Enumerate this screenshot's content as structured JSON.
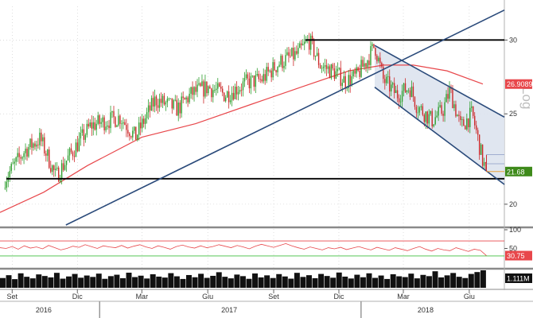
{
  "chart_data": [
    {
      "type": "candlestick",
      "panel": "price",
      "y_scale": "log",
      "y_axis_label": "Log",
      "yticks": [
        20,
        25,
        30
      ],
      "ylim": [
        19,
        32.6
      ],
      "x_period": [
        "2016-08-15",
        "2018-07-20"
      ],
      "last_price": 21.68,
      "last_price_label": "21.68",
      "moving_average_last": 26.9089,
      "moving_average_label": "26.9089",
      "colors": {
        "up": "#2e9e2e",
        "down": "#cc2a2a",
        "moving_average": "#e8474b",
        "trendline": "#2a4a7a",
        "channel_fill": "#dde3ee",
        "price_tag": "#3e8a1a",
        "ma_tag": "#e8474b"
      },
      "ohlc_samples": [
        {
          "date": "2016-08-22",
          "close": 21.3
        },
        {
          "date": "2016-09-20",
          "close": 22.9
        },
        {
          "date": "2016-10-10",
          "close": 23.5
        },
        {
          "date": "2016-11-01",
          "close": 21.4
        },
        {
          "date": "2016-11-21",
          "close": 22.6
        },
        {
          "date": "2016-12-20",
          "close": 24.3
        },
        {
          "date": "2017-01-30",
          "close": 24.8
        },
        {
          "date": "2017-02-20",
          "close": 23.6
        },
        {
          "date": "2017-03-20",
          "close": 25.9
        },
        {
          "date": "2017-04-20",
          "close": 25.3
        },
        {
          "date": "2017-05-10",
          "close": 26.3
        },
        {
          "date": "2017-06-01",
          "close": 26.7
        },
        {
          "date": "2017-06-26",
          "close": 26.2
        },
        {
          "date": "2017-07-25",
          "close": 27.0
        },
        {
          "date": "2017-08-15",
          "close": 27.2
        },
        {
          "date": "2017-09-10",
          "close": 28.4
        },
        {
          "date": "2017-10-05",
          "close": 29.0
        },
        {
          "date": "2017-10-20",
          "close": 30.0
        },
        {
          "date": "2017-11-05",
          "close": 28.2
        },
        {
          "date": "2017-11-25",
          "close": 27.7
        },
        {
          "date": "2017-12-10",
          "close": 27.1
        },
        {
          "date": "2017-12-25",
          "close": 27.4
        },
        {
          "date": "2018-01-10",
          "close": 28.6
        },
        {
          "date": "2018-01-20",
          "close": 29.6
        },
        {
          "date": "2018-02-01",
          "close": 27.2
        },
        {
          "date": "2018-02-20",
          "close": 26.2
        },
        {
          "date": "2018-03-10",
          "close": 26.7
        },
        {
          "date": "2018-03-20",
          "close": 25.5
        },
        {
          "date": "2018-04-10",
          "close": 24.6
        },
        {
          "date": "2018-04-25",
          "close": 25.2
        },
        {
          "date": "2018-05-05",
          "close": 26.5
        },
        {
          "date": "2018-05-20",
          "close": 24.2
        },
        {
          "date": "2018-06-05",
          "close": 25.0
        },
        {
          "date": "2018-06-20",
          "close": 22.2
        },
        {
          "date": "2018-06-25",
          "close": 21.68
        }
      ],
      "moving_average": [
        {
          "date": "2016-08-15",
          "value": 19.6
        },
        {
          "date": "2016-10-15",
          "value": 20.6
        },
        {
          "date": "2016-12-15",
          "value": 22.0
        },
        {
          "date": "2017-03-01",
          "value": 23.6
        },
        {
          "date": "2017-05-15",
          "value": 24.4
        },
        {
          "date": "2017-08-01",
          "value": 25.6
        },
        {
          "date": "2017-10-15",
          "value": 26.8
        },
        {
          "date": "2017-12-15",
          "value": 27.8
        },
        {
          "date": "2018-02-01",
          "value": 28.2
        },
        {
          "date": "2018-03-15",
          "value": 28.2
        },
        {
          "date": "2018-05-01",
          "value": 27.8
        },
        {
          "date": "2018-06-20",
          "value": 26.9089
        }
      ],
      "annotations": {
        "resistance_level": 30.0,
        "support_level": 21.3,
        "rising_trendline": [
          {
            "date": "2016-11-15",
            "value": 19.0
          },
          {
            "date": "2018-07-20",
            "value": 32.3
          }
        ],
        "falling_channel_upper": [
          {
            "date": "2018-01-20",
            "value": 29.6
          },
          {
            "date": "2018-07-20",
            "value": 24.8
          }
        ],
        "falling_channel_lower": [
          {
            "date": "2018-01-20",
            "value": 26.7
          },
          {
            "date": "2018-07-20",
            "value": 21.0
          }
        ]
      }
    },
    {
      "type": "line",
      "panel": "rsi",
      "yticks": [
        50,
        100
      ],
      "ylim": [
        0,
        100
      ],
      "upper_band": 70,
      "lower_band": 30,
      "last_value": 30.75,
      "last_value_label": "30.75",
      "series": [
        {
          "values": [
            52,
            50,
            55,
            48,
            57,
            51,
            54,
            49,
            58,
            52,
            46,
            50,
            56,
            53,
            60,
            55,
            50,
            57,
            54,
            52,
            58,
            51,
            56,
            60,
            54,
            50,
            57,
            53,
            48,
            55,
            59,
            54,
            51,
            57,
            52,
            55,
            60,
            56,
            52,
            58,
            54,
            49,
            56,
            61,
            57,
            53,
            58,
            63,
            57,
            52,
            48,
            54,
            50,
            46,
            52,
            49,
            53,
            47,
            51,
            55,
            50,
            46,
            53,
            49,
            45,
            52,
            48,
            44,
            50,
            55,
            48,
            43,
            50,
            46,
            44,
            52,
            47,
            42,
            48,
            45,
            30.75
          ]
        }
      ]
    },
    {
      "type": "bar",
      "panel": "volume",
      "last_value_label": "1.111M",
      "values": [
        0.62,
        0.8,
        0.55,
        0.92,
        0.7,
        0.6,
        0.85,
        0.75,
        0.66,
        0.95,
        0.58,
        0.72,
        0.88,
        0.64,
        0.78,
        0.69,
        0.9,
        0.57,
        0.74,
        0.83,
        0.61,
        0.96,
        0.68,
        0.77,
        0.59,
        0.86,
        0.71,
        0.65,
        0.93,
        0.73,
        0.56,
        0.81,
        0.67,
        0.89,
        0.63,
        0.76,
        0.99,
        0.7,
        0.6,
        0.84,
        0.74,
        0.57,
        0.91,
        0.66,
        0.79,
        0.62,
        0.87,
        0.72,
        0.58,
        0.95,
        0.69,
        0.8,
        0.61,
        0.88,
        0.75,
        0.64,
        0.97,
        0.71,
        0.59,
        0.83,
        0.67,
        0.92,
        0.63,
        0.78,
        0.56,
        0.86,
        0.73,
        0.68,
        0.9,
        0.6,
        0.82,
        0.74,
        1.05,
        0.66,
        0.79,
        0.94,
        0.7,
        0.62,
        0.88,
        1.0,
        1.111
      ]
    }
  ],
  "x_axis": {
    "month_labels": [
      {
        "label": "Set",
        "date": "2016-09-01"
      },
      {
        "label": "Dic",
        "date": "2016-12-01"
      },
      {
        "label": "Mar",
        "date": "2017-03-01"
      },
      {
        "label": "Giu",
        "date": "2017-06-01"
      },
      {
        "label": "Set",
        "date": "2017-09-01"
      },
      {
        "label": "Dic",
        "date": "2017-12-01"
      },
      {
        "label": "Mar",
        "date": "2018-03-01"
      },
      {
        "label": "Giu",
        "date": "2018-06-01"
      }
    ],
    "year_labels": [
      {
        "label": "2016",
        "date": "2016-10-15"
      },
      {
        "label": "2017",
        "date": "2017-07-01"
      },
      {
        "label": "2018",
        "date": "2018-04-01"
      }
    ],
    "year_separators": [
      "2017-01-01",
      "2018-01-01"
    ]
  }
}
